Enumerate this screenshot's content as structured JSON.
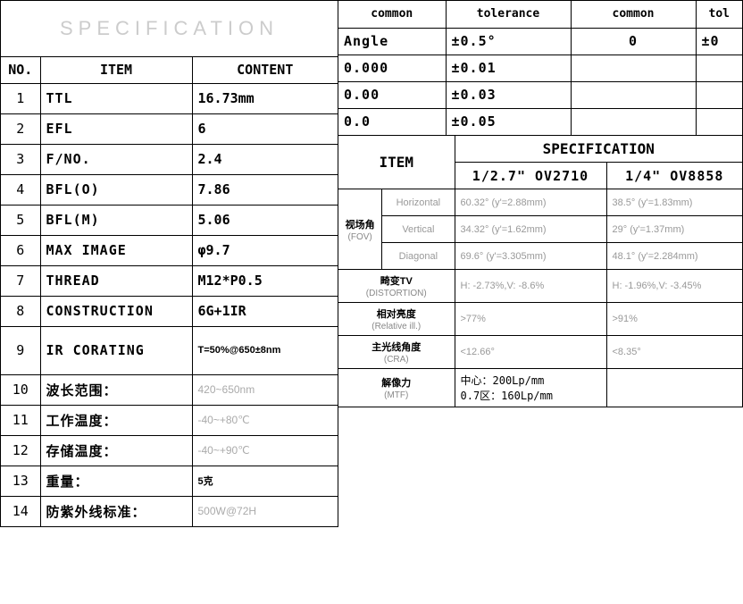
{
  "title": "SPECIFICATION",
  "left_headers": {
    "no": "NO.",
    "item": "ITEM",
    "content": "CONTENT"
  },
  "left_rows": [
    {
      "n": "1",
      "item": "TTL",
      "content": "16.73mm",
      "g": false
    },
    {
      "n": "2",
      "item": "EFL",
      "content": "6",
      "g": false
    },
    {
      "n": "3",
      "item": "F/NO.",
      "content": "2.4",
      "g": false
    },
    {
      "n": "4",
      "item": "BFL(O)",
      "content": "7.86",
      "g": false
    },
    {
      "n": "5",
      "item": "BFL(M)",
      "content": "5.06",
      "g": false
    },
    {
      "n": "6",
      "item": "MAX IMAGE",
      "content": "φ9.7",
      "g": false
    },
    {
      "n": "7",
      "item": "THREAD",
      "content": "M12*P0.5",
      "g": false
    },
    {
      "n": "8",
      "item": "CONSTRUCTION",
      "content": "6G+1IR",
      "g": false
    },
    {
      "n": "9",
      "item": "IR CORATING",
      "content": "T=50%@650±8nm",
      "g": false,
      "sb": true,
      "tall": true
    },
    {
      "n": "10",
      "item": "波长范围：",
      "content": "420~650nm",
      "g": true
    },
    {
      "n": "11",
      "item": "工作温度：",
      "content": "-40~+80℃",
      "g": true
    },
    {
      "n": "12",
      "item": "存储温度：",
      "content": "-40~+90℃",
      "g": true
    },
    {
      "n": "13",
      "item": "重量：",
      "content": "5克",
      "g": false,
      "sb": true
    },
    {
      "n": "14",
      "item": "防紫外线标准：",
      "content": "500W@72H",
      "g": true
    }
  ],
  "tol_headers": {
    "c1": "common",
    "c2": "tolerance",
    "c3": "common",
    "c4": "tol"
  },
  "tol_rows": [
    {
      "a": "Angle",
      "b": "±0.5°",
      "c": "0",
      "d": "±0"
    },
    {
      "a": "0.000",
      "b": "±0.01",
      "c": "",
      "d": ""
    },
    {
      "a": "0.00",
      "b": "±0.03",
      "c": "",
      "d": ""
    },
    {
      "a": "0.0",
      "b": "±0.05",
      "c": "",
      "d": ""
    }
  ],
  "spec2": {
    "item_label": "ITEM",
    "spec_label": "SPECIFICATION",
    "sensor1": "1/2.7\" OV2710",
    "sensor2": "1/4\" OV8858",
    "fov_label": "视场角",
    "fov_en": "(FOV)",
    "rows_fov": [
      {
        "lbl": "Horizontal",
        "v1": "60.32° (y'=2.88mm)",
        "v2": "38.5° (y'=1.83mm)"
      },
      {
        "lbl": "Vertical",
        "v1": "34.32° (y'=1.62mm)",
        "v2": "29° (y'=1.37mm)"
      },
      {
        "lbl": "Diagonal",
        "v1": "69.6° (y'=3.305mm)",
        "v2": "48.1° (y'=2.284mm)"
      }
    ],
    "rows_other": [
      {
        "lbl": "畸变TV",
        "en": "(DISTORTION)",
        "v1": "H: -2.73%,V: -8.6%",
        "v2": "H: -1.96%,V: -3.45%"
      },
      {
        "lbl": "相对亮度",
        "en": "(Relative ill.)",
        "v1": ">77%",
        "v2": ">91%"
      },
      {
        "lbl": "主光线角度",
        "en": "(CRA)",
        "v1": "<12.66°",
        "v2": "<8.35°"
      },
      {
        "lbl": "解像力",
        "en": "(MTF)",
        "v1_a": "中心：200Lp/mm",
        "v1_b": "0.7区：160Lp/mm",
        "v2": ""
      }
    ]
  }
}
